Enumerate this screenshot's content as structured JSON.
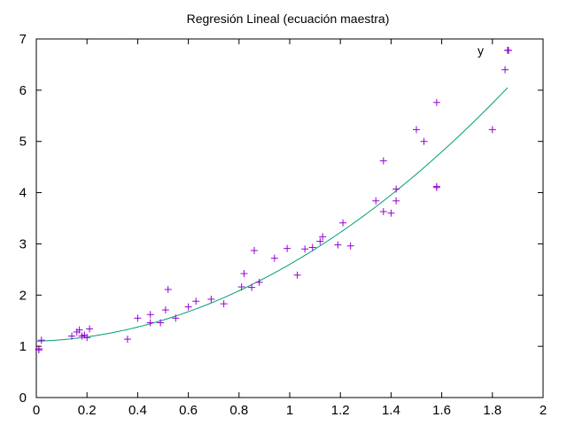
{
  "chart_data": {
    "type": "scatter",
    "title": "Regresión Lineal (ecuación maestra)",
    "xlabel": "",
    "ylabel": "",
    "xlim": [
      0,
      2
    ],
    "ylim": [
      0,
      7
    ],
    "x_ticks": [
      0,
      0.2,
      0.4,
      0.6,
      0.8,
      1,
      1.2,
      1.4,
      1.6,
      1.8,
      2
    ],
    "x_tick_labels": [
      "0",
      "0.2",
      "0.4",
      "0.6",
      "0.8",
      "1",
      "1.2",
      "1.4",
      "1.6",
      "1.8",
      "2"
    ],
    "y_ticks": [
      0,
      1,
      2,
      3,
      4,
      5,
      6,
      7
    ],
    "y_tick_labels": [
      "0",
      "1",
      "2",
      "3",
      "4",
      "5",
      "6",
      "7"
    ],
    "grid": false,
    "legend_position": "top-right",
    "series": [
      {
        "name": "y",
        "kind": "scatter",
        "marker": "plus",
        "color": "#9400d3",
        "points": [
          [
            0.01,
            0.95
          ],
          [
            0.01,
            0.93
          ],
          [
            0.02,
            1.12
          ],
          [
            0.14,
            1.2
          ],
          [
            0.16,
            1.28
          ],
          [
            0.17,
            1.32
          ],
          [
            0.18,
            1.2
          ],
          [
            0.19,
            1.22
          ],
          [
            0.2,
            1.17
          ],
          [
            0.21,
            1.34
          ],
          [
            0.36,
            1.14
          ],
          [
            0.4,
            1.55
          ],
          [
            0.45,
            1.62
          ],
          [
            0.45,
            1.46
          ],
          [
            0.49,
            1.46
          ],
          [
            0.51,
            1.71
          ],
          [
            0.52,
            2.11
          ],
          [
            0.55,
            1.55
          ],
          [
            0.6,
            1.77
          ],
          [
            0.63,
            1.88
          ],
          [
            0.69,
            1.92
          ],
          [
            0.74,
            1.83
          ],
          [
            0.81,
            2.16
          ],
          [
            0.82,
            2.42
          ],
          [
            0.85,
            2.15
          ],
          [
            0.86,
            2.87
          ],
          [
            0.88,
            2.25
          ],
          [
            0.94,
            2.72
          ],
          [
            0.99,
            2.91
          ],
          [
            1.03,
            2.39
          ],
          [
            1.06,
            2.9
          ],
          [
            1.09,
            2.93
          ],
          [
            1.12,
            3.05
          ],
          [
            1.13,
            3.14
          ],
          [
            1.19,
            2.98
          ],
          [
            1.21,
            3.41
          ],
          [
            1.24,
            2.96
          ],
          [
            1.34,
            3.84
          ],
          [
            1.37,
            3.63
          ],
          [
            1.37,
            4.62
          ],
          [
            1.4,
            3.6
          ],
          [
            1.42,
            3.84
          ],
          [
            1.42,
            4.07
          ],
          [
            1.5,
            5.23
          ],
          [
            1.53,
            5.0
          ],
          [
            1.58,
            5.76
          ],
          [
            1.58,
            4.12
          ],
          [
            1.58,
            4.1
          ],
          [
            1.8,
            5.23
          ],
          [
            1.85,
            6.4
          ],
          [
            1.86,
            6.78
          ]
        ]
      },
      {
        "name": "",
        "kind": "line",
        "color": "#009e73",
        "coefficients": [
          1.1,
          0.15,
          1.35
        ],
        "x_range": [
          0,
          1.86
        ]
      }
    ]
  }
}
